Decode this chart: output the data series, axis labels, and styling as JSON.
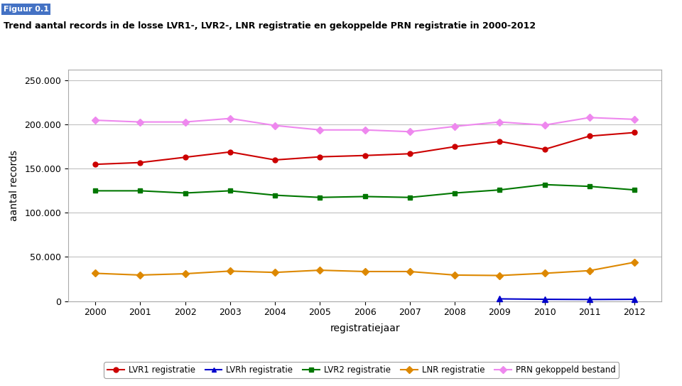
{
  "title": "Trend aantal records in de losse LVR1-, LVR2-, LNR registratie en gekoppelde PRN registratie in 2000-2012",
  "figuur_label": "Figuur 0.1",
  "xlabel": "registratiejaar",
  "ylabel": "aantal records",
  "years": [
    2000,
    2001,
    2002,
    2003,
    2004,
    2005,
    2006,
    2007,
    2008,
    2009,
    2010,
    2011,
    2012
  ],
  "LVR1": [
    155000,
    157000,
    163000,
    169000,
    160000,
    163500,
    165000,
    167000,
    175000,
    181000,
    172000,
    187000,
    191000
  ],
  "LVRh": [
    null,
    null,
    null,
    null,
    null,
    null,
    null,
    null,
    null,
    2500,
    2000,
    1800,
    2000
  ],
  "LVR2": [
    125000,
    125000,
    122500,
    125000,
    120000,
    117500,
    118500,
    117500,
    122500,
    126000,
    132000,
    130000,
    126000
  ],
  "LNR": [
    31500,
    29500,
    31000,
    34000,
    32500,
    35000,
    33500,
    33500,
    29500,
    29000,
    31500,
    34500,
    44000
  ],
  "PRN": [
    205000,
    203000,
    203000,
    207000,
    199000,
    194000,
    194000,
    192000,
    198000,
    203000,
    199500,
    208000,
    206000
  ],
  "colors": {
    "LVR1": "#cc0000",
    "LVRh": "#0000cc",
    "LVR2": "#007700",
    "LNR": "#dd8800",
    "PRN": "#ee88ee"
  },
  "ylim": [
    0,
    262500
  ],
  "yticks": [
    0,
    50000,
    100000,
    150000,
    200000,
    250000
  ],
  "ytick_labels": [
    "0",
    "50.000",
    "100.000",
    "150.000",
    "200.000",
    "250.000"
  ],
  "bg_color": "#ffffff",
  "plot_bg_color": "#ffffff",
  "grid_color": "#c0c0c0",
  "figuur_bg_color": "#4472c4",
  "legend_labels": [
    "LVR1 registratie",
    "LVRh registratie",
    "LVR2 registratie",
    "LNR registratie",
    "PRN gekoppeld bestand"
  ]
}
